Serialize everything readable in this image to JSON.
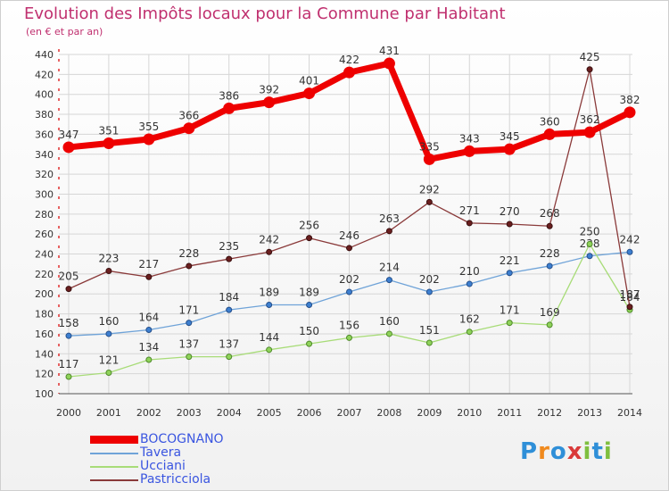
{
  "header": {
    "title": "Evolution des Impôts locaux pour la Commune par Habitant",
    "subtitle": "(en € et par an)"
  },
  "brand": {
    "chars": [
      "P",
      "r",
      "o",
      "x",
      "i",
      "t",
      "i"
    ],
    "colors": [
      "#2f8fd8",
      "#f08a1e",
      "#2f8fd8",
      "#d93a3a",
      "#7fbf3f",
      "#2f8fd8",
      "#7fbf3f"
    ]
  },
  "chart_data": {
    "type": "line",
    "x": [
      "2000",
      "2001",
      "2002",
      "2003",
      "2004",
      "2005",
      "2006",
      "2007",
      "2008",
      "2009",
      "2010",
      "2011",
      "2012",
      "2013",
      "2014"
    ],
    "yticks": [
      "100",
      "120",
      "140",
      "160",
      "180",
      "200",
      "220",
      "240",
      "260",
      "280",
      "300",
      "320",
      "340",
      "360",
      "380",
      "400",
      "420",
      "440"
    ],
    "ylim": [
      100,
      440
    ],
    "grid": true,
    "legend_position": "bottom-left",
    "series": [
      {
        "name": "BOCOGNANO",
        "color": "#ee0000",
        "values": [
          347,
          351,
          355,
          366,
          386,
          392,
          401,
          422,
          431,
          335,
          343,
          345,
          360,
          362,
          382
        ]
      },
      {
        "name": "Tavera",
        "color": "#6fa3d8",
        "values": [
          158,
          160,
          164,
          171,
          184,
          189,
          189,
          202,
          214,
          202,
          210,
          221,
          228,
          238,
          242
        ]
      },
      {
        "name": "Ucciani",
        "color": "#a8dc78",
        "values": [
          117,
          121,
          134,
          137,
          137,
          144,
          150,
          156,
          160,
          151,
          162,
          171,
          169,
          250,
          184
        ]
      },
      {
        "name": "Pastricciola",
        "color": "#8a3a3a",
        "values": [
          205,
          223,
          217,
          228,
          235,
          242,
          256,
          246,
          263,
          292,
          271,
          270,
          268,
          425,
          187
        ]
      }
    ]
  }
}
